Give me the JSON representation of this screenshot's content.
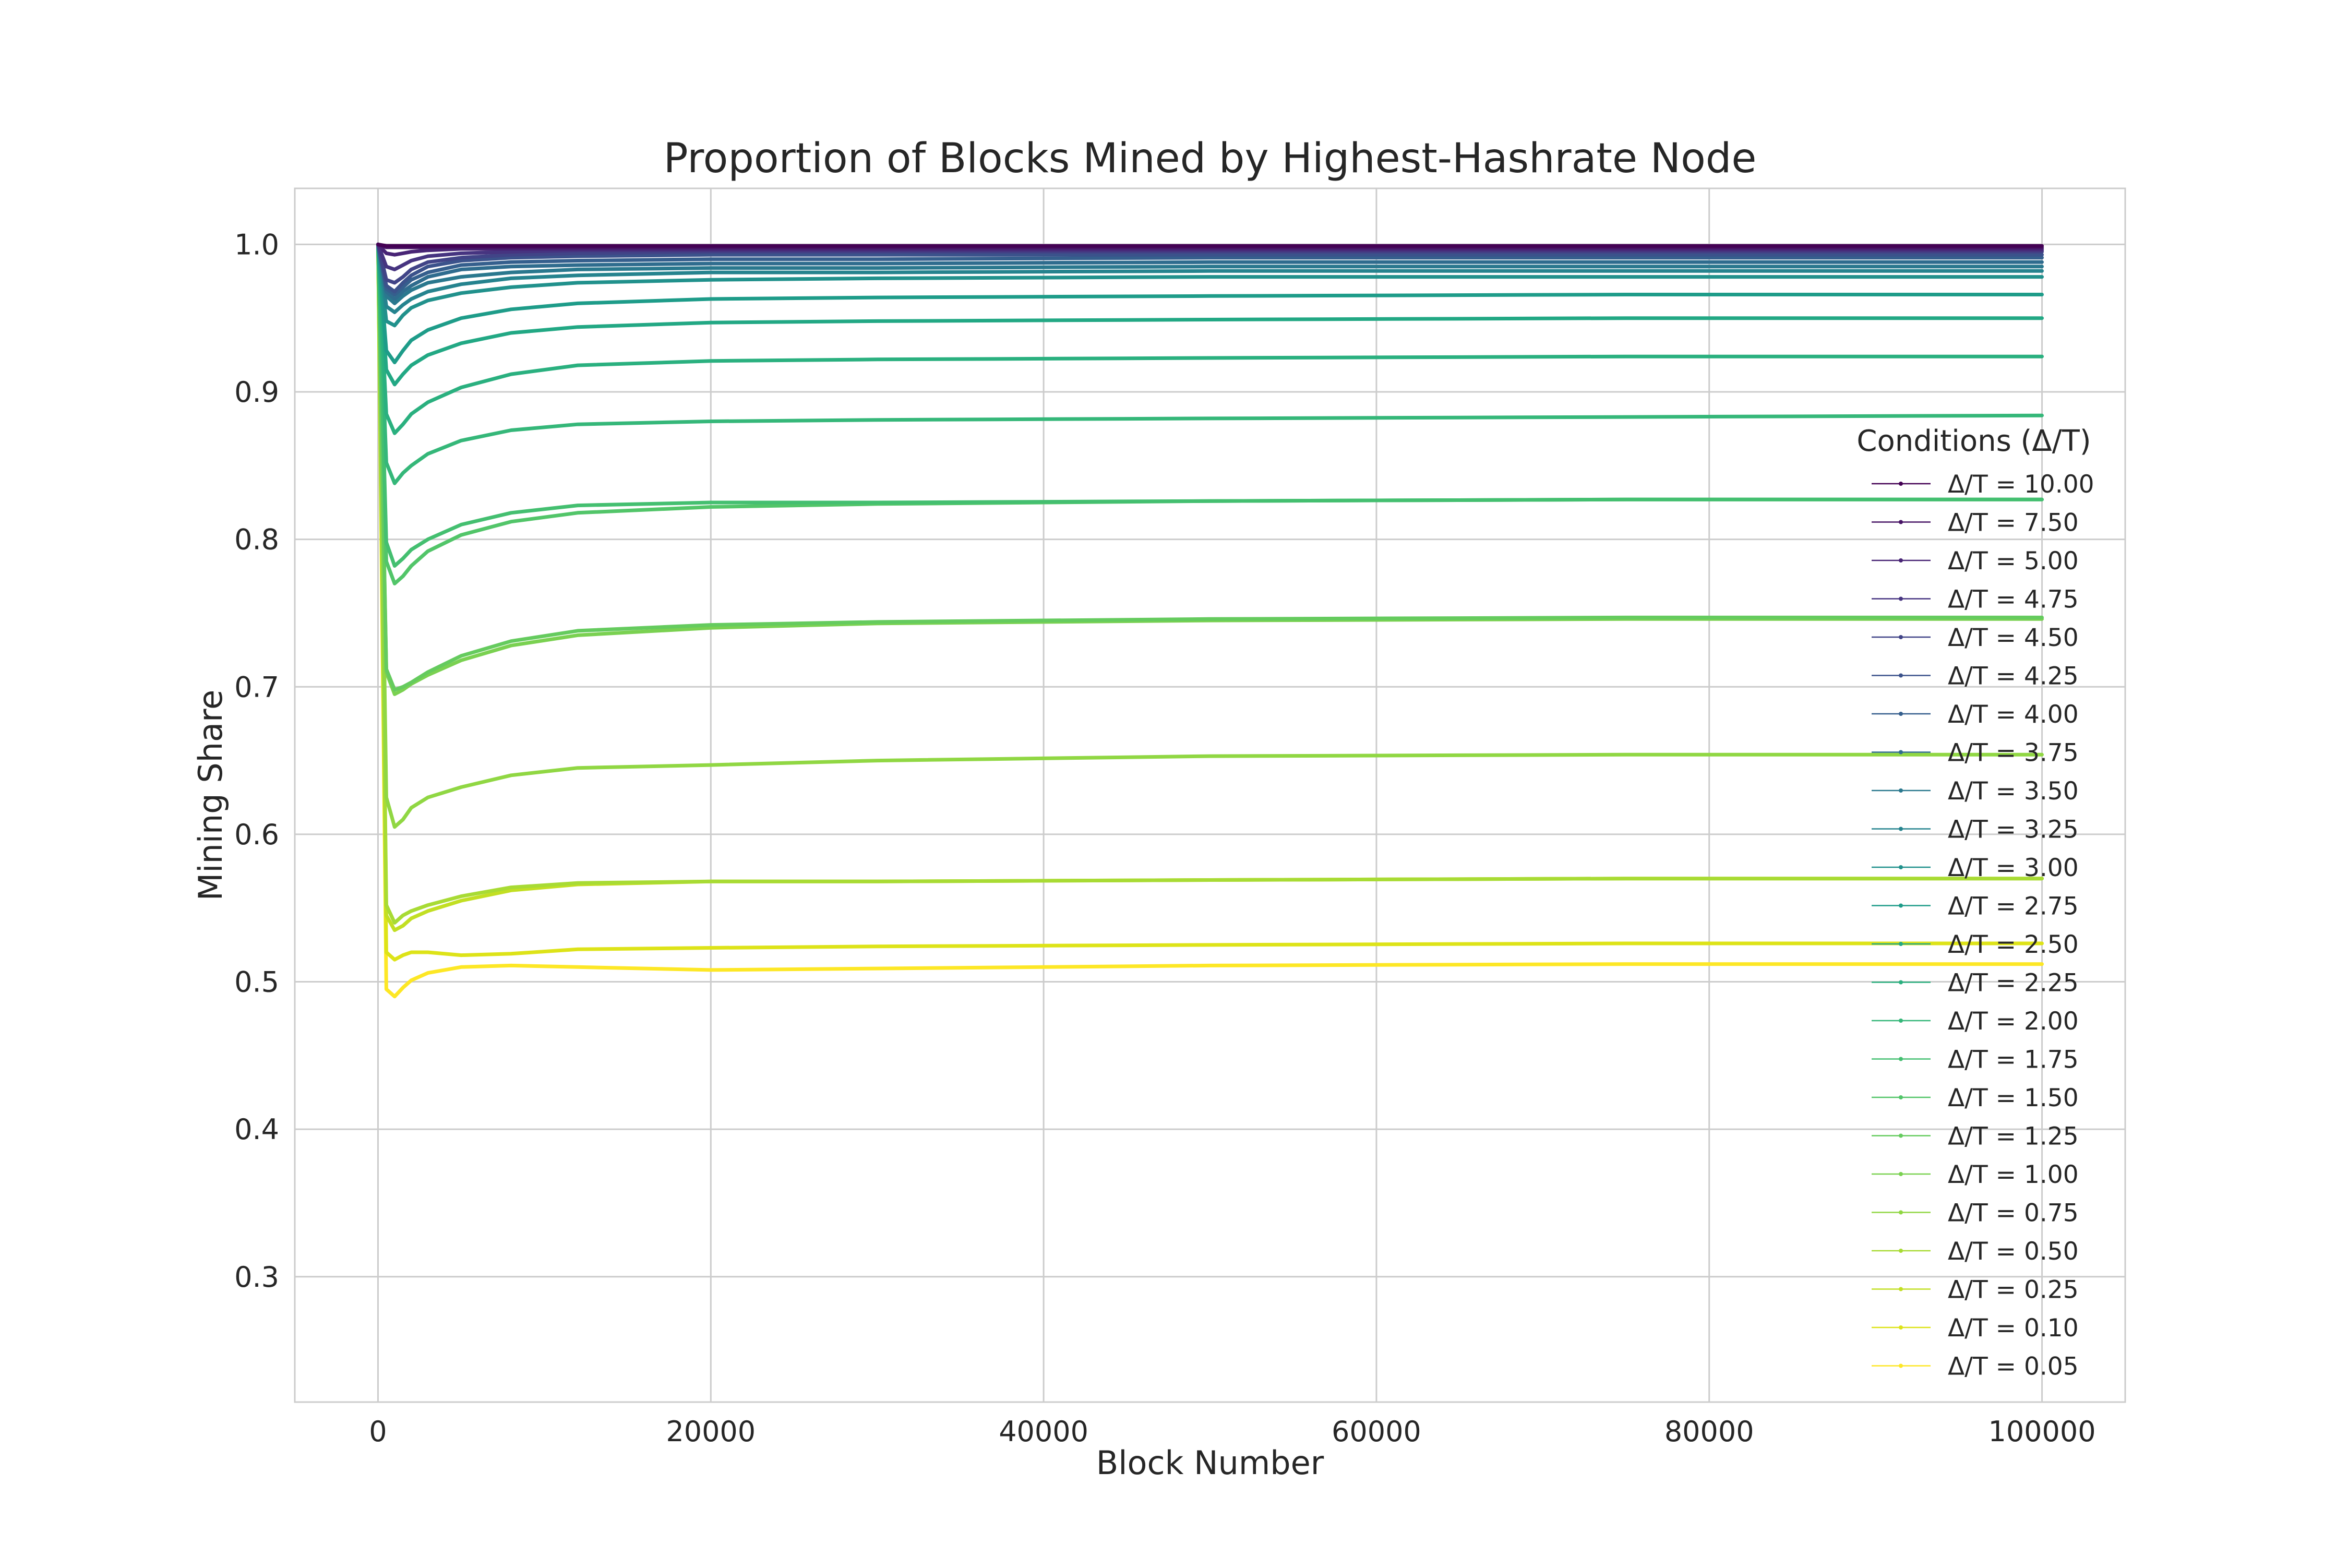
{
  "chart_data": {
    "type": "line",
    "title": "Proportion of Blocks Mined by Highest-Hashrate Node",
    "xlabel": "Block Number",
    "ylabel": "Mining Share",
    "xlim": [
      -5000,
      105000
    ],
    "ylim": [
      0.215,
      1.038
    ],
    "x_ticks": [
      0,
      20000,
      40000,
      60000,
      80000,
      100000
    ],
    "x_tick_labels": [
      "0",
      "20000",
      "40000",
      "60000",
      "80000",
      "100000"
    ],
    "y_ticks": [
      0.3,
      0.4,
      0.5,
      0.6,
      0.7,
      0.8,
      0.9,
      1.0
    ],
    "y_tick_labels": [
      "0.3",
      "0.4",
      "0.5",
      "0.6",
      "0.7",
      "0.8",
      "0.9",
      "1.0"
    ],
    "grid": true,
    "legend_title": "Conditions (Δ/T)",
    "legend_position": "right",
    "x": [
      0,
      500,
      1000,
      1500,
      2000,
      3000,
      5000,
      8000,
      12000,
      20000,
      30000,
      50000,
      75000,
      100000
    ],
    "series": [
      {
        "name": "Δ/T = 10.00",
        "color": "#440154",
        "values": [
          1.0,
          0.999,
          0.999,
          0.999,
          0.999,
          0.999,
          0.999,
          0.999,
          0.999,
          0.999,
          0.999,
          0.999,
          0.999,
          0.999
        ]
      },
      {
        "name": "Δ/T = 7.50",
        "color": "#471365",
        "values": [
          1.0,
          0.998,
          0.998,
          0.998,
          0.998,
          0.998,
          0.998,
          0.998,
          0.998,
          0.998,
          0.998,
          0.998,
          0.998,
          0.998
        ]
      },
      {
        "name": "Δ/T = 5.00",
        "color": "#482475",
        "values": [
          1.0,
          0.994,
          0.993,
          0.994,
          0.995,
          0.996,
          0.997,
          0.997,
          0.997,
          0.997,
          0.997,
          0.997,
          0.997,
          0.997
        ]
      },
      {
        "name": "Δ/T = 4.75",
        "color": "#463480",
        "values": [
          1.0,
          0.985,
          0.983,
          0.986,
          0.989,
          0.992,
          0.994,
          0.995,
          0.996,
          0.996,
          0.996,
          0.996,
          0.996,
          0.996
        ]
      },
      {
        "name": "Δ/T = 4.50",
        "color": "#414487",
        "values": [
          1.0,
          0.976,
          0.974,
          0.978,
          0.983,
          0.988,
          0.991,
          0.993,
          0.994,
          0.995,
          0.995,
          0.995,
          0.995,
          0.995
        ]
      },
      {
        "name": "Δ/T = 4.25",
        "color": "#3b528b",
        "values": [
          1.0,
          0.972,
          0.968,
          0.974,
          0.979,
          0.985,
          0.989,
          0.991,
          0.992,
          0.993,
          0.993,
          0.993,
          0.993,
          0.993
        ]
      },
      {
        "name": "Δ/T = 4.00",
        "color": "#355f8d",
        "values": [
          1.0,
          0.97,
          0.966,
          0.971,
          0.976,
          0.981,
          0.986,
          0.988,
          0.989,
          0.99,
          0.99,
          0.991,
          0.991,
          0.991
        ]
      },
      {
        "name": "Δ/T = 3.75",
        "color": "#2f6c8e",
        "values": [
          1.0,
          0.968,
          0.963,
          0.968,
          0.972,
          0.978,
          0.983,
          0.985,
          0.986,
          0.987,
          0.987,
          0.988,
          0.988,
          0.988
        ]
      },
      {
        "name": "Δ/T = 3.50",
        "color": "#2a788e",
        "values": [
          1.0,
          0.965,
          0.96,
          0.965,
          0.969,
          0.974,
          0.978,
          0.981,
          0.983,
          0.984,
          0.984,
          0.985,
          0.985,
          0.985
        ]
      },
      {
        "name": "Δ/T = 3.25",
        "color": "#25838e",
        "values": [
          1.0,
          0.958,
          0.954,
          0.959,
          0.963,
          0.968,
          0.973,
          0.977,
          0.979,
          0.981,
          0.981,
          0.982,
          0.982,
          0.982
        ]
      },
      {
        "name": "Δ/T = 3.00",
        "color": "#21918c",
        "values": [
          1.0,
          0.948,
          0.945,
          0.952,
          0.957,
          0.962,
          0.967,
          0.971,
          0.974,
          0.976,
          0.977,
          0.978,
          0.978,
          0.978
        ]
      },
      {
        "name": "Δ/T = 2.75",
        "color": "#1e9c89",
        "values": [
          1.0,
          0.928,
          0.92,
          0.928,
          0.935,
          0.942,
          0.95,
          0.956,
          0.96,
          0.963,
          0.964,
          0.965,
          0.966,
          0.966
        ]
      },
      {
        "name": "Δ/T = 2.50",
        "color": "#22a884",
        "values": [
          1.0,
          0.915,
          0.905,
          0.912,
          0.918,
          0.925,
          0.933,
          0.94,
          0.944,
          0.947,
          0.948,
          0.949,
          0.95,
          0.95
        ]
      },
      {
        "name": "Δ/T = 2.25",
        "color": "#2ab07f",
        "values": [
          1.0,
          0.885,
          0.872,
          0.878,
          0.885,
          0.893,
          0.903,
          0.912,
          0.918,
          0.921,
          0.922,
          0.923,
          0.924,
          0.924
        ]
      },
      {
        "name": "Δ/T = 2.00",
        "color": "#35b779",
        "values": [
          1.0,
          0.852,
          0.838,
          0.845,
          0.85,
          0.858,
          0.867,
          0.874,
          0.878,
          0.88,
          0.881,
          0.882,
          0.883,
          0.884
        ]
      },
      {
        "name": "Δ/T = 1.75",
        "color": "#44bf70",
        "values": [
          1.0,
          0.798,
          0.782,
          0.787,
          0.793,
          0.8,
          0.81,
          0.818,
          0.823,
          0.825,
          0.825,
          0.826,
          0.827,
          0.827
        ]
      },
      {
        "name": "Δ/T = 1.50",
        "color": "#52c569",
        "values": [
          1.0,
          0.785,
          0.77,
          0.775,
          0.782,
          0.792,
          0.803,
          0.812,
          0.818,
          0.822,
          0.824,
          0.826,
          0.827,
          0.827
        ]
      },
      {
        "name": "Δ/T = 1.25",
        "color": "#65cb5e",
        "values": [
          1.0,
          0.712,
          0.698,
          0.7,
          0.703,
          0.71,
          0.721,
          0.731,
          0.738,
          0.742,
          0.744,
          0.746,
          0.747,
          0.747
        ]
      },
      {
        "name": "Δ/T = 1.00",
        "color": "#7ad151",
        "values": [
          1.0,
          0.71,
          0.695,
          0.698,
          0.702,
          0.708,
          0.718,
          0.728,
          0.735,
          0.74,
          0.743,
          0.745,
          0.746,
          0.746
        ]
      },
      {
        "name": "Δ/T = 0.75",
        "color": "#90d743",
        "values": [
          1.0,
          0.625,
          0.605,
          0.61,
          0.618,
          0.625,
          0.632,
          0.64,
          0.645,
          0.647,
          0.65,
          0.653,
          0.654,
          0.654
        ]
      },
      {
        "name": "Δ/T = 0.50",
        "color": "#a8db34",
        "values": [
          1.0,
          0.552,
          0.54,
          0.545,
          0.548,
          0.552,
          0.558,
          0.564,
          0.567,
          0.568,
          0.568,
          0.569,
          0.57,
          0.57
        ]
      },
      {
        "name": "Δ/T = 0.25",
        "color": "#c2df23",
        "values": [
          1.0,
          0.545,
          0.535,
          0.538,
          0.543,
          0.548,
          0.555,
          0.562,
          0.566,
          0.568,
          0.568,
          0.569,
          0.57,
          0.57
        ]
      },
      {
        "name": "Δ/T = 0.10",
        "color": "#dde318",
        "values": [
          1.0,
          0.52,
          0.515,
          0.518,
          0.52,
          0.52,
          0.518,
          0.519,
          0.522,
          0.523,
          0.524,
          0.525,
          0.526,
          0.526
        ]
      },
      {
        "name": "Δ/T = 0.05",
        "color": "#fde725",
        "values": [
          1.0,
          0.495,
          0.49,
          0.496,
          0.501,
          0.506,
          0.51,
          0.511,
          0.51,
          0.508,
          0.509,
          0.511,
          0.512,
          0.512
        ]
      }
    ]
  }
}
